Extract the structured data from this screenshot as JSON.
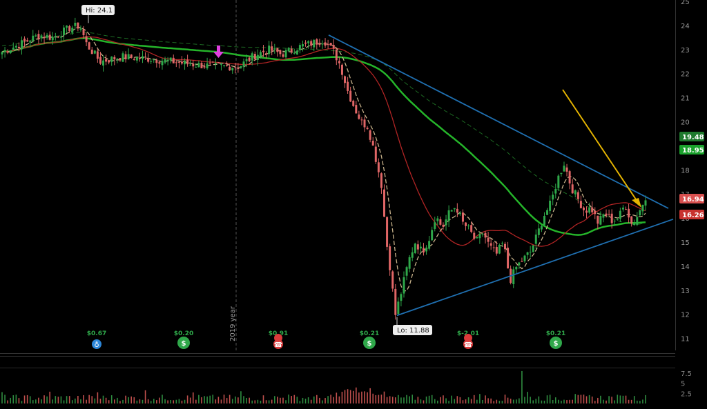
{
  "chart_data": {
    "type": "candlestick",
    "y_range": [
      10.5,
      25
    ],
    "y_ticks": [
      25,
      24,
      23,
      22,
      21,
      20,
      18,
      17,
      16,
      15,
      14,
      13,
      12,
      11
    ],
    "divider_label": "2019 year",
    "high_callout": "Hi: 24.1",
    "low_callout": "Lo: 11.88",
    "high_value": 24.1,
    "low_value": 11.88,
    "price_badges": [
      {
        "value": "19.48",
        "color": "#1f7a2e"
      },
      {
        "value": "18.95",
        "color": "#1aa12c"
      },
      {
        "value": "16.94",
        "color": "#d9504f"
      },
      {
        "value": "16.26",
        "color": "#c8332f"
      }
    ],
    "events": [
      {
        "label": "$0.67",
        "icon": "lightbulb-icon",
        "color": "#2c86d8"
      },
      {
        "label": "$0.20",
        "icon": "dividend-icon",
        "color": "#2fa84a"
      },
      {
        "label": "$0.91",
        "icon": "earnings-icon",
        "color": "#d93b3b"
      },
      {
        "label": "$0.21",
        "icon": "dividend-icon",
        "color": "#2fa84a"
      },
      {
        "label": "$-2.01",
        "icon": "earnings-icon",
        "color": "#d93b3b"
      },
      {
        "label": "$0.21",
        "icon": "dividend-icon",
        "color": "#2fa84a"
      }
    ],
    "volume_ticks": [
      "7.5",
      "5",
      "2.5"
    ],
    "colors": {
      "up": "#2fa84a",
      "down": "#e06666",
      "sma200": "#25b52a",
      "sma50": "#b02424",
      "ema20": "#c8b28a",
      "trend": "#1f6fb0",
      "arrow": "#e5b400",
      "marker": "#e040e0"
    }
  }
}
